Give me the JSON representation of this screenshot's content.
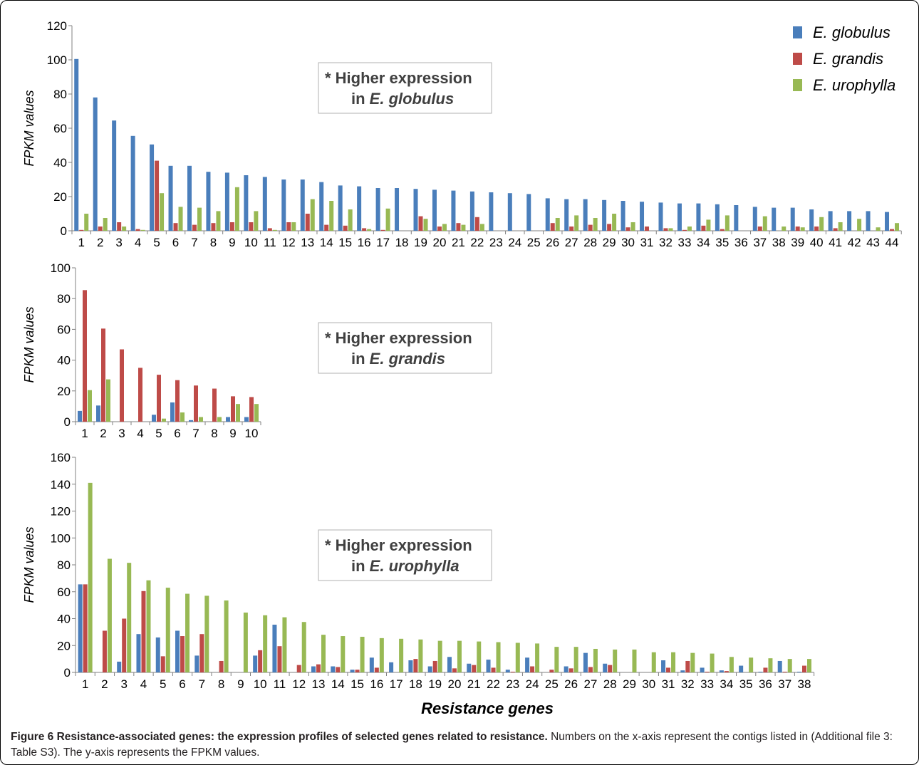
{
  "figure_caption": {
    "label": "Figure 6",
    "bold": "Resistance-associated genes: the expression profiles of selected genes related to resistance.",
    "text": "Numbers on the x-axis represent the contigs listed in (Additional file 3: Table S3). The y-axis represents the FPKM values."
  },
  "legend": {
    "items": [
      {
        "name": "E. globulus",
        "color": "#4a7ebb"
      },
      {
        "name": "E. grandis",
        "color": "#be4b48"
      },
      {
        "name": "E. urophylla",
        "color": "#98b954"
      }
    ]
  },
  "chart_data": [
    {
      "type": "bar",
      "title": [
        "* Higher expression",
        "in E. globulus"
      ],
      "title_species": "E. globulus",
      "ylabel": "FPKM values",
      "xlabel": "",
      "ylim": [
        0,
        120
      ],
      "yticks": [
        0,
        20,
        40,
        60,
        80,
        100,
        120
      ],
      "categories": [
        "1",
        "2",
        "3",
        "4",
        "5",
        "6",
        "7",
        "8",
        "9",
        "10",
        "11",
        "12",
        "13",
        "14",
        "15",
        "16",
        "17",
        "18",
        "19",
        "20",
        "21",
        "22",
        "23",
        "24",
        "25",
        "26",
        "27",
        "28",
        "29",
        "30",
        "31",
        "32",
        "33",
        "34",
        "35",
        "36",
        "37",
        "38",
        "39",
        "40",
        "41",
        "42",
        "43",
        "44"
      ],
      "series": [
        {
          "name": "E. globulus",
          "color": "#4a7ebb",
          "values": [
            100.5,
            78,
            64.5,
            55.5,
            50.5,
            38,
            38,
            34.5,
            34,
            32.5,
            31.5,
            30,
            30,
            28.5,
            26.5,
            26,
            25,
            25,
            24.5,
            24,
            23.5,
            23,
            22.5,
            22,
            21.5,
            19,
            18.5,
            18.5,
            18,
            17.5,
            17,
            16.5,
            16,
            16,
            15.5,
            15,
            14,
            13.5,
            13.5,
            12.5,
            11.5,
            11.5,
            11.5,
            11
          ]
        },
        {
          "name": "E. grandis",
          "color": "#be4b48",
          "values": [
            0.5,
            2.5,
            5,
            1,
            41,
            4.5,
            3.5,
            4.5,
            5,
            5,
            1.5,
            5,
            10,
            3.5,
            3,
            1.5,
            0.5,
            0,
            8.5,
            2.5,
            4.5,
            8,
            0,
            0,
            0,
            4.5,
            2.5,
            3.5,
            4,
            2,
            2.5,
            1.5,
            0.5,
            3,
            1,
            0,
            2.5,
            0,
            2.5,
            2.5,
            1.5,
            0,
            0,
            1
          ]
        },
        {
          "name": "E. urophylla",
          "color": "#98b954",
          "values": [
            10,
            7.5,
            2.5,
            0.5,
            22,
            14,
            13.5,
            11.5,
            25.5,
            11.5,
            0.5,
            5,
            18.5,
            17.5,
            12.5,
            1,
            13,
            0,
            7,
            4,
            3.5,
            4,
            0,
            0,
            0,
            7.5,
            9,
            7.5,
            10,
            5,
            0,
            1.5,
            2.5,
            6.5,
            9,
            0,
            8.5,
            2.5,
            2,
            8,
            5,
            7,
            2,
            4.5
          ]
        }
      ]
    },
    {
      "type": "bar",
      "title": [
        "* Higher expression",
        "in E. grandis"
      ],
      "title_species": "E. grandis",
      "ylabel": "FPKM values",
      "xlabel": "",
      "ylim": [
        0,
        100
      ],
      "yticks": [
        0,
        20,
        40,
        60,
        80,
        100
      ],
      "categories": [
        "1",
        "2",
        "3",
        "4",
        "5",
        "6",
        "7",
        "8",
        "9",
        "10"
      ],
      "series": [
        {
          "name": "E. globulus",
          "color": "#4a7ebb",
          "values": [
            7,
            10.5,
            0,
            0,
            4.5,
            12.5,
            1,
            0,
            3,
            3
          ]
        },
        {
          "name": "E. grandis",
          "color": "#be4b48",
          "values": [
            85.5,
            60.5,
            47,
            35,
            30.5,
            27,
            23.5,
            21.5,
            16.5,
            16
          ]
        },
        {
          "name": "E. urophylla",
          "color": "#98b954",
          "values": [
            20.5,
            27.5,
            0,
            0,
            2,
            6,
            3,
            3,
            11.5,
            11.5
          ]
        }
      ]
    },
    {
      "type": "bar",
      "title": [
        "* Higher expression",
        "in E. urophylla"
      ],
      "title_species": "E. urophylla",
      "ylabel": "FPKM values",
      "xlabel": "Resistance genes",
      "ylim": [
        0,
        160
      ],
      "yticks": [
        0,
        20,
        40,
        60,
        80,
        100,
        120,
        140,
        160
      ],
      "categories": [
        "1",
        "2",
        "3",
        "4",
        "5",
        "6",
        "7",
        "8",
        "9",
        "10",
        "11",
        "12",
        "13",
        "14",
        "15",
        "16",
        "17",
        "18",
        "19",
        "20",
        "21",
        "22",
        "23",
        "24",
        "25",
        "26",
        "27",
        "28",
        "29",
        "30",
        "31",
        "32",
        "33",
        "34",
        "35",
        "36",
        "37",
        "38"
      ],
      "series": [
        {
          "name": "E. globulus",
          "color": "#4a7ebb",
          "values": [
            65.5,
            0,
            8,
            28.5,
            26,
            31,
            12.5,
            0,
            0,
            12.5,
            35.5,
            0,
            4.5,
            4.5,
            2,
            11,
            7.5,
            9,
            4.5,
            11.5,
            6.5,
            9.5,
            2,
            11,
            0,
            4.5,
            14.5,
            6.5,
            0,
            0,
            9,
            1.5,
            3.5,
            1.5,
            5,
            0.5,
            8.5,
            0.5
          ]
        },
        {
          "name": "E. grandis",
          "color": "#be4b48",
          "values": [
            65.5,
            31,
            40,
            60.5,
            12,
            27,
            28.5,
            8.5,
            0,
            16.5,
            19.5,
            5.5,
            6,
            4,
            2,
            3.5,
            0,
            10,
            8.5,
            3,
            5.5,
            3.5,
            0.5,
            4.5,
            2,
            3,
            4,
            5.5,
            0,
            0,
            3.5,
            8.5,
            0.5,
            1,
            0,
            3.5,
            0.5,
            5
          ]
        },
        {
          "name": "E. urophylla",
          "color": "#98b954",
          "values": [
            141,
            84.5,
            81.5,
            68.5,
            63,
            58.5,
            57,
            53.5,
            44.5,
            42.5,
            41,
            37.5,
            28,
            27,
            26.5,
            25.5,
            25,
            24.5,
            23.5,
            23.5,
            23,
            22.5,
            22,
            21.5,
            19,
            19,
            17.5,
            17,
            17,
            15,
            15,
            14.5,
            14,
            11.5,
            11,
            10.5,
            10,
            10
          ]
        }
      ]
    }
  ]
}
